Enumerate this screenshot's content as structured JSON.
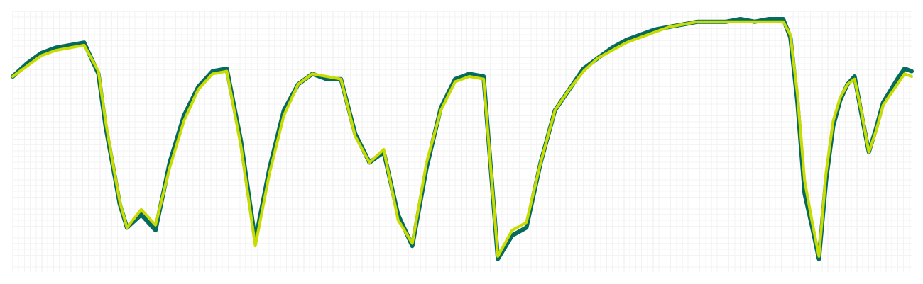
{
  "chart_data": {
    "type": "line",
    "title": "",
    "xlabel": "",
    "ylabel": "",
    "xlim": [
      0,
      126
    ],
    "ylim": [
      0,
      100
    ],
    "grid": true,
    "legend": "none",
    "x": [
      0,
      2,
      4,
      6,
      8,
      10,
      12,
      13,
      14,
      15,
      16,
      18,
      20,
      22,
      24,
      26,
      28,
      30,
      32,
      34,
      36,
      38,
      40,
      42,
      44,
      46,
      48,
      50,
      52,
      54,
      56,
      58,
      60,
      62,
      64,
      66,
      68,
      70,
      72,
      74,
      76,
      78,
      80,
      82,
      84,
      86,
      88,
      90,
      92,
      94,
      96,
      98,
      100,
      102,
      104,
      106,
      108,
      109,
      110,
      111,
      112,
      113,
      114,
      115,
      116,
      117,
      118,
      119,
      120,
      121,
      122,
      124,
      125,
      126
    ],
    "series": [
      {
        "color": "#066a5f",
        "width": 6,
        "values": [
          75,
          80,
          84,
          86,
          87,
          88,
          76,
          56,
          41,
          26,
          17,
          22,
          16,
          42,
          60,
          71,
          77,
          78,
          50,
          12,
          40,
          62,
          72,
          76,
          74,
          74,
          53,
          42,
          46,
          22,
          10,
          40,
          63,
          74,
          76,
          75,
          5,
          14,
          17,
          42,
          62,
          70,
          78,
          82,
          86,
          89,
          91,
          93,
          94,
          95,
          96,
          96,
          96,
          97,
          96,
          97,
          97,
          90,
          65,
          30,
          18,
          5,
          35,
          56,
          66,
          72,
          75,
          60,
          46,
          55,
          65,
          74,
          78,
          77
        ]
      },
      {
        "color": "#c8dc00",
        "width": 4,
        "values": [
          75,
          79,
          83,
          85,
          86,
          87,
          77,
          58,
          42,
          27,
          17,
          24,
          18,
          40,
          58,
          70,
          76,
          77,
          48,
          10,
          38,
          60,
          72,
          76,
          75,
          74,
          52,
          42,
          47,
          20,
          11,
          42,
          62,
          73,
          75,
          74,
          6,
          16,
          19,
          42,
          62,
          70,
          77,
          82,
          85,
          88,
          90,
          92,
          94,
          95,
          96,
          96,
          96,
          96,
          96,
          96,
          96,
          91,
          68,
          35,
          20,
          6,
          38,
          58,
          67,
          72,
          74,
          61,
          46,
          54,
          64,
          72,
          76,
          75
        ]
      }
    ]
  }
}
